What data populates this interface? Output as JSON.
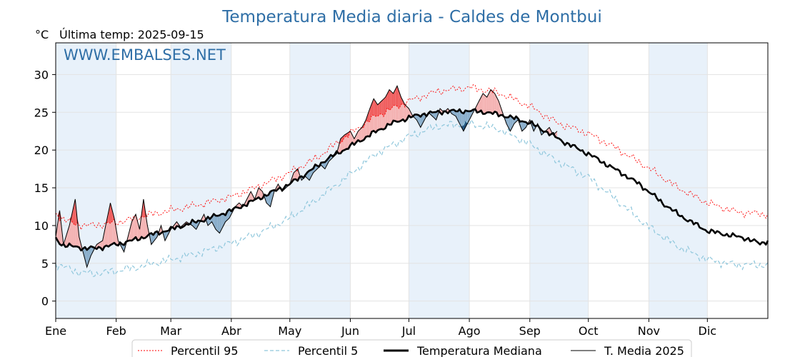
{
  "chart_data": {
    "type": "line",
    "title": "Temperatura Media diaria - Caldes de Montbui",
    "ylabel": "°C",
    "last_temp_label": "Última temp: 2025-09-15",
    "watermark": "WWW.EMBALSES.NET",
    "ylim": [
      -2.3,
      34.2
    ],
    "y_ticks": [
      0,
      5,
      10,
      15,
      20,
      25,
      30
    ],
    "x_ticks": [
      "Ene",
      "Feb",
      "Mar",
      "Abr",
      "May",
      "Jun",
      "Jul",
      "Ago",
      "Sep",
      "Oct",
      "Nov",
      "Dic"
    ],
    "x_tick_days": [
      1,
      32,
      60,
      91,
      121,
      152,
      182,
      213,
      244,
      274,
      305,
      335
    ],
    "day_range": [
      1,
      366
    ],
    "grid": true,
    "legend_position": "bottom-center",
    "colors": {
      "p95": "#ff0000",
      "p5": "#8fc7dc",
      "median": "#000000",
      "current": "#000000",
      "above_fill": "#f4b3b3",
      "above_fill_strong": "#f06060",
      "below_fill": "#8aaecb",
      "below_fill_strong": "#1f4e79",
      "band": "#e8f1fa",
      "title": "#2e6ea6"
    },
    "series_keys": [
      {
        "name": "Percentil 95",
        "style": "dotted-red"
      },
      {
        "name": "Percentil 5",
        "style": "dashed-lightblue"
      },
      {
        "name": "Temperatura Mediana",
        "style": "thick-black"
      },
      {
        "name": "T. Media 2025",
        "style": "thin-black"
      }
    ],
    "median_anchors": [
      [
        1,
        8.3
      ],
      [
        4,
        7.5
      ],
      [
        10,
        7.2
      ],
      [
        16,
        7.0
      ],
      [
        22,
        7.0
      ],
      [
        28,
        7.3
      ],
      [
        32,
        7.5
      ],
      [
        40,
        8.0
      ],
      [
        50,
        8.8
      ],
      [
        60,
        9.5
      ],
      [
        70,
        10.3
      ],
      [
        80,
        11.0
      ],
      [
        91,
        12.0
      ],
      [
        100,
        13.0
      ],
      [
        110,
        14.2
      ],
      [
        121,
        15.5
      ],
      [
        130,
        17.0
      ],
      [
        140,
        18.8
      ],
      [
        152,
        20.5
      ],
      [
        162,
        22.0
      ],
      [
        172,
        23.4
      ],
      [
        182,
        24.3
      ],
      [
        190,
        24.8
      ],
      [
        200,
        25.1
      ],
      [
        213,
        25.2
      ],
      [
        222,
        25.0
      ],
      [
        232,
        24.5
      ],
      [
        244,
        23.6
      ],
      [
        252,
        22.5
      ],
      [
        262,
        21.0
      ],
      [
        274,
        19.5
      ],
      [
        284,
        18.0
      ],
      [
        292,
        16.8
      ],
      [
        300,
        15.5
      ],
      [
        305,
        14.5
      ],
      [
        312,
        13.0
      ],
      [
        320,
        11.5
      ],
      [
        328,
        10.3
      ],
      [
        335,
        9.3
      ],
      [
        345,
        8.8
      ],
      [
        355,
        8.3
      ],
      [
        362,
        7.6
      ],
      [
        366,
        8.0
      ]
    ],
    "p95_anchors": [
      [
        1,
        11.5
      ],
      [
        10,
        10.2
      ],
      [
        20,
        10.0
      ],
      [
        32,
        10.4
      ],
      [
        45,
        11.2
      ],
      [
        60,
        12.0
      ],
      [
        75,
        12.8
      ],
      [
        91,
        13.8
      ],
      [
        105,
        15.2
      ],
      [
        121,
        17.0
      ],
      [
        135,
        19.0
      ],
      [
        152,
        22.2
      ],
      [
        165,
        24.5
      ],
      [
        182,
        26.5
      ],
      [
        197,
        27.8
      ],
      [
        213,
        28.3
      ],
      [
        228,
        27.6
      ],
      [
        244,
        25.8
      ],
      [
        258,
        23.6
      ],
      [
        274,
        22.2
      ],
      [
        288,
        20.3
      ],
      [
        305,
        17.6
      ],
      [
        320,
        15.0
      ],
      [
        335,
        13.0
      ],
      [
        350,
        11.8
      ],
      [
        366,
        11.5
      ]
    ],
    "p5_anchors": [
      [
        1,
        5.0
      ],
      [
        10,
        4.0
      ],
      [
        20,
        3.6
      ],
      [
        32,
        4.0
      ],
      [
        45,
        4.6
      ],
      [
        60,
        5.5
      ],
      [
        75,
        6.4
      ],
      [
        91,
        7.7
      ],
      [
        105,
        9.0
      ],
      [
        121,
        11.0
      ],
      [
        135,
        13.5
      ],
      [
        152,
        16.8
      ],
      [
        165,
        19.5
      ],
      [
        182,
        21.8
      ],
      [
        197,
        23.2
      ],
      [
        213,
        23.5
      ],
      [
        228,
        22.8
      ],
      [
        244,
        20.8
      ],
      [
        258,
        18.5
      ],
      [
        274,
        16.4
      ],
      [
        288,
        13.5
      ],
      [
        305,
        9.8
      ],
      [
        320,
        7.2
      ],
      [
        335,
        5.5
      ],
      [
        350,
        4.8
      ],
      [
        366,
        4.8
      ]
    ],
    "current_anchors": [
      [
        1,
        8.5
      ],
      [
        3,
        12.0
      ],
      [
        5,
        7.5
      ],
      [
        8,
        10.0
      ],
      [
        11,
        13.5
      ],
      [
        13,
        8.5
      ],
      [
        15,
        6.5
      ],
      [
        17,
        4.5
      ],
      [
        19,
        6.0
      ],
      [
        22,
        7.5
      ],
      [
        25,
        8.0
      ],
      [
        27,
        10.5
      ],
      [
        29,
        13.0
      ],
      [
        31,
        11.0
      ],
      [
        33,
        8.0
      ],
      [
        36,
        6.5
      ],
      [
        38,
        8.5
      ],
      [
        40,
        10.5
      ],
      [
        42,
        11.5
      ],
      [
        44,
        9.5
      ],
      [
        46,
        13.5
      ],
      [
        48,
        10.0
      ],
      [
        50,
        7.5
      ],
      [
        53,
        8.5
      ],
      [
        55,
        10.0
      ],
      [
        57,
        8.0
      ],
      [
        60,
        9.5
      ],
      [
        63,
        10.5
      ],
      [
        65,
        9.8
      ],
      [
        68,
        10.5
      ],
      [
        71,
        10.0
      ],
      [
        73,
        9.5
      ],
      [
        75,
        10.5
      ],
      [
        77,
        11.5
      ],
      [
        79,
        10.0
      ],
      [
        81,
        10.5
      ],
      [
        83,
        9.5
      ],
      [
        85,
        9.0
      ],
      [
        88,
        10.5
      ],
      [
        90,
        11.0
      ],
      [
        93,
        12.5
      ],
      [
        95,
        13.0
      ],
      [
        97,
        12.5
      ],
      [
        99,
        13.5
      ],
      [
        101,
        14.5
      ],
      [
        103,
        13.5
      ],
      [
        105,
        15.0
      ],
      [
        107,
        14.5
      ],
      [
        109,
        13.0
      ],
      [
        111,
        12.5
      ],
      [
        113,
        14.5
      ],
      [
        115,
        15.5
      ],
      [
        117,
        14.5
      ],
      [
        119,
        15.0
      ],
      [
        121,
        15.5
      ],
      [
        123,
        17.0
      ],
      [
        125,
        17.5
      ],
      [
        127,
        16.0
      ],
      [
        129,
        16.5
      ],
      [
        131,
        16.0
      ],
      [
        133,
        17.0
      ],
      [
        135,
        17.5
      ],
      [
        137,
        18.0
      ],
      [
        139,
        17.5
      ],
      [
        141,
        18.5
      ],
      [
        143,
        19.0
      ],
      [
        145,
        19.5
      ],
      [
        147,
        21.5
      ],
      [
        149,
        22.0
      ],
      [
        152,
        22.5
      ],
      [
        154,
        21.5
      ],
      [
        156,
        22.5
      ],
      [
        158,
        23.0
      ],
      [
        160,
        24.0
      ],
      [
        162,
        25.5
      ],
      [
        164,
        26.8
      ],
      [
        166,
        26.0
      ],
      [
        168,
        26.5
      ],
      [
        170,
        27.0
      ],
      [
        172,
        28.0
      ],
      [
        174,
        27.5
      ],
      [
        176,
        28.5
      ],
      [
        178,
        27.0
      ],
      [
        180,
        26.0
      ],
      [
        182,
        25.5
      ],
      [
        184,
        24.5
      ],
      [
        186,
        24.0
      ],
      [
        188,
        23.0
      ],
      [
        190,
        24.0
      ],
      [
        192,
        25.0
      ],
      [
        194,
        24.5
      ],
      [
        196,
        24.0
      ],
      [
        198,
        25.5
      ],
      [
        200,
        25.0
      ],
      [
        202,
        25.5
      ],
      [
        204,
        24.8
      ],
      [
        206,
        24.5
      ],
      [
        208,
        23.5
      ],
      [
        210,
        22.5
      ],
      [
        212,
        23.5
      ],
      [
        214,
        24.5
      ],
      [
        216,
        25.5
      ],
      [
        218,
        26.5
      ],
      [
        220,
        27.5
      ],
      [
        222,
        27.0
      ],
      [
        224,
        28.0
      ],
      [
        226,
        27.5
      ],
      [
        228,
        26.5
      ],
      [
        230,
        25.0
      ],
      [
        232,
        23.5
      ],
      [
        234,
        22.5
      ],
      [
        236,
        23.5
      ],
      [
        238,
        24.0
      ],
      [
        240,
        22.5
      ],
      [
        242,
        23.0
      ],
      [
        244,
        24.0
      ],
      [
        246,
        22.5
      ],
      [
        248,
        23.5
      ],
      [
        250,
        22.0
      ],
      [
        252,
        22.5
      ],
      [
        254,
        23.0
      ],
      [
        256,
        22.0
      ],
      [
        258,
        22.5
      ]
    ]
  }
}
